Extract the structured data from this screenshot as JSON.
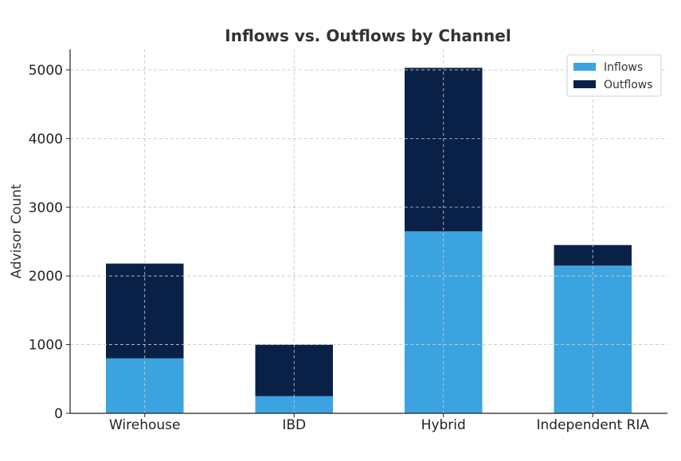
{
  "chart_data": {
    "type": "bar",
    "stacked": true,
    "title": "Inflows vs. Outflows by Channel",
    "xlabel": "",
    "ylabel": "Advisor Count",
    "categories": [
      "Wirehouse",
      "IBD",
      "Hybrid",
      "Independent RIA"
    ],
    "series": [
      {
        "name": "Inflows",
        "color": "#3ba3e0",
        "values": [
          800,
          250,
          2650,
          2150
        ]
      },
      {
        "name": "Outflows",
        "color": "#0a2147",
        "values": [
          1380,
          750,
          2380,
          300
        ]
      }
    ],
    "ylim": [
      0,
      5300
    ],
    "yticks": [
      0,
      1000,
      2000,
      3000,
      4000,
      5000
    ],
    "grid": true,
    "legend_position": "top-right"
  }
}
